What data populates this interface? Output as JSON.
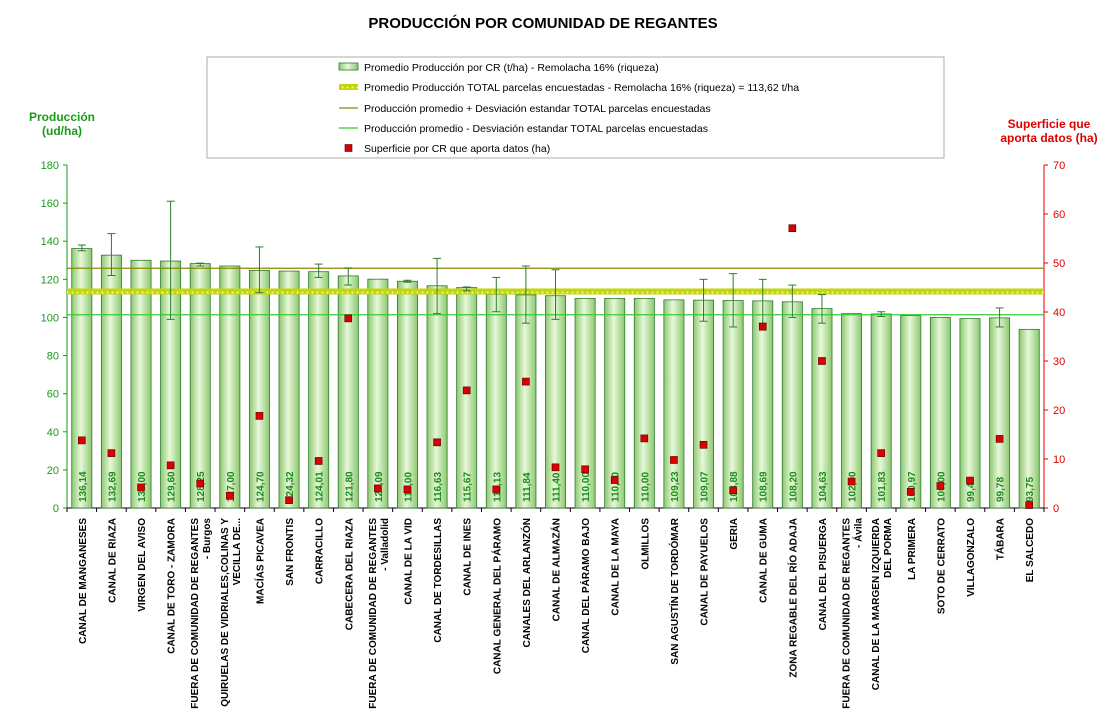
{
  "chart_data": {
    "type": "bar",
    "title": "PRODUCCIÓN POR COMUNIDAD DE REGANTES",
    "y_left_label": [
      "Producción",
      "(ud/ha)"
    ],
    "y_right_label": [
      "Superficie que",
      "aporta datos (ha)"
    ],
    "y_left_range": [
      0,
      180
    ],
    "y_left_ticks": [
      0,
      20,
      40,
      60,
      80,
      100,
      120,
      140,
      160,
      180
    ],
    "y_right_range": [
      0,
      70
    ],
    "y_right_ticks": [
      0,
      10,
      20,
      30,
      40,
      50,
      60,
      70
    ],
    "categories": [
      [
        "CANAL DE MANGANESES"
      ],
      [
        "CANAL DE RIAZA"
      ],
      [
        "VIRGEN DEL AVISO"
      ],
      [
        "CANAL DE TORO - ZAMORA"
      ],
      [
        "FUERA DE COMUNIDAD DE REGANTES",
        "- Burgos"
      ],
      [
        "QUIRUELAS DE VIDRIALES,COLINAS Y",
        "VECILLA DE..."
      ],
      [
        "MACÍAS PICAVEA"
      ],
      [
        "SAN FRONTIS"
      ],
      [
        "CARRACILLO"
      ],
      [
        "CABECERA DEL RIAZA"
      ],
      [
        "FUERA DE COMUNIDAD DE REGANTES",
        "- Valladolid"
      ],
      [
        "CANAL DE LA VID"
      ],
      [
        "CANAL DE TORDESILLAS"
      ],
      [
        "CANAL DE INES"
      ],
      [
        "CANAL GENERAL DEL PÁRAMO"
      ],
      [
        "CANALES DEL ARLANZÓN"
      ],
      [
        "CANAL DE ALMAZÁN"
      ],
      [
        "CANAL DEL PÁRAMO BAJO"
      ],
      [
        "CANAL DE LA MAYA"
      ],
      [
        "OLMILLOS"
      ],
      [
        "SAN AGUSTÍN DE TORDÓMAR"
      ],
      [
        "CANAL DE PAYUELOS"
      ],
      [
        "GERIA"
      ],
      [
        "CANAL DE GUMA"
      ],
      [
        "ZONA REGABLE DEL RÍO ADAJA"
      ],
      [
        "CANAL DEL PISUERGA"
      ],
      [
        "FUERA DE COMUNIDAD DE REGANTES",
        "- Ávila"
      ],
      [
        "CANAL DE LA MARGEN IZQUIERDA",
        "DEL PORMA"
      ],
      [
        "LA PRIMERA"
      ],
      [
        "SOTO DE CERRATO"
      ],
      [
        "VILLAGONZALO"
      ],
      [
        "TÁBARA"
      ],
      [
        "EL SALCEDO"
      ]
    ],
    "bar_values": [
      136.14,
      132.69,
      130.0,
      129.6,
      128.25,
      127.0,
      124.7,
      124.32,
      124.01,
      121.8,
      120.09,
      119.0,
      116.63,
      115.67,
      112.13,
      111.84,
      111.4,
      110.0,
      110.0,
      110.0,
      109.23,
      109.07,
      108.88,
      108.69,
      108.2,
      104.63,
      102.0,
      101.83,
      100.97,
      100.0,
      99.4,
      99.78,
      93.75
    ],
    "bar_labels": [
      "136,14",
      "132,69",
      "130,00",
      "129,60",
      "128,25",
      "127,00",
      "124,70",
      "124,32",
      "124,01",
      "121,80",
      "120,09",
      "119,00",
      "116,63",
      "115,67",
      "112,13",
      "111,84",
      "111,40",
      "110,00",
      "110,00",
      "110,00",
      "109,23",
      "109,07",
      "108,88",
      "108,69",
      "108,20",
      "104,63",
      "102,00",
      "101,83",
      "100,97",
      "100,00",
      "99,40",
      "99,78",
      "93,75"
    ],
    "error_bars": [
      [
        135,
        138
      ],
      [
        122,
        144
      ],
      null,
      [
        99,
        161
      ],
      [
        127,
        128.5
      ],
      null,
      [
        113,
        137
      ],
      null,
      [
        121,
        128
      ],
      [
        117,
        126
      ],
      null,
      [
        118.5,
        119.5
      ],
      [
        102,
        131
      ],
      [
        114,
        116
      ],
      [
        103,
        121
      ],
      [
        97,
        127
      ],
      [
        99,
        125
      ],
      null,
      null,
      null,
      null,
      [
        98,
        120
      ],
      [
        95,
        123
      ],
      [
        97,
        120
      ],
      [
        100,
        117
      ],
      [
        97,
        112
      ],
      null,
      [
        100.5,
        103
      ],
      null,
      null,
      null,
      [
        95,
        105
      ],
      null
    ],
    "surface_values": [
      13.8,
      11.2,
      4.2,
      8.7,
      5.0,
      2.5,
      18.8,
      1.6,
      9.6,
      38.7,
      4.0,
      3.8,
      13.4,
      24.0,
      3.8,
      25.8,
      8.3,
      7.9,
      5.7,
      14.2,
      9.8,
      12.9,
      3.6,
      37.0,
      57.1,
      30.0,
      5.4,
      11.2,
      3.3,
      4.5,
      5.6,
      14.1,
      0.6
    ],
    "average_total": 113.62,
    "mean_plus_sd": 125.8,
    "mean_minus_sd": 101.4,
    "legend": [
      "Promedio Producción por CR (t/ha) - Remolacha 16% (riqueza)",
      "Promedio Producción TOTAL parcelas encuestadas - Remolacha 16% (riqueza) = 113,62 t/ha",
      "Producción promedio + Desviación estandar TOTAL parcelas encuestadas",
      "Producción promedio - Desviación estandar TOTAL parcelas encuestadas",
      "Superficie por CR que aporta datos (ha)"
    ],
    "legend_placement": "top-center",
    "grid": false
  },
  "colors": {
    "bar_fill_light": "#e6f7d6",
    "bar_fill_dark": "#7fc062",
    "bar_stroke": "#2f7a2f",
    "avg_line": "#c3d60c",
    "plus_sd_line": "#8a8a00",
    "minus_sd_line": "#33cc33",
    "surface_marker": "#dd0000",
    "left_axis": "#1a9a1a",
    "right_axis": "#e00000"
  }
}
